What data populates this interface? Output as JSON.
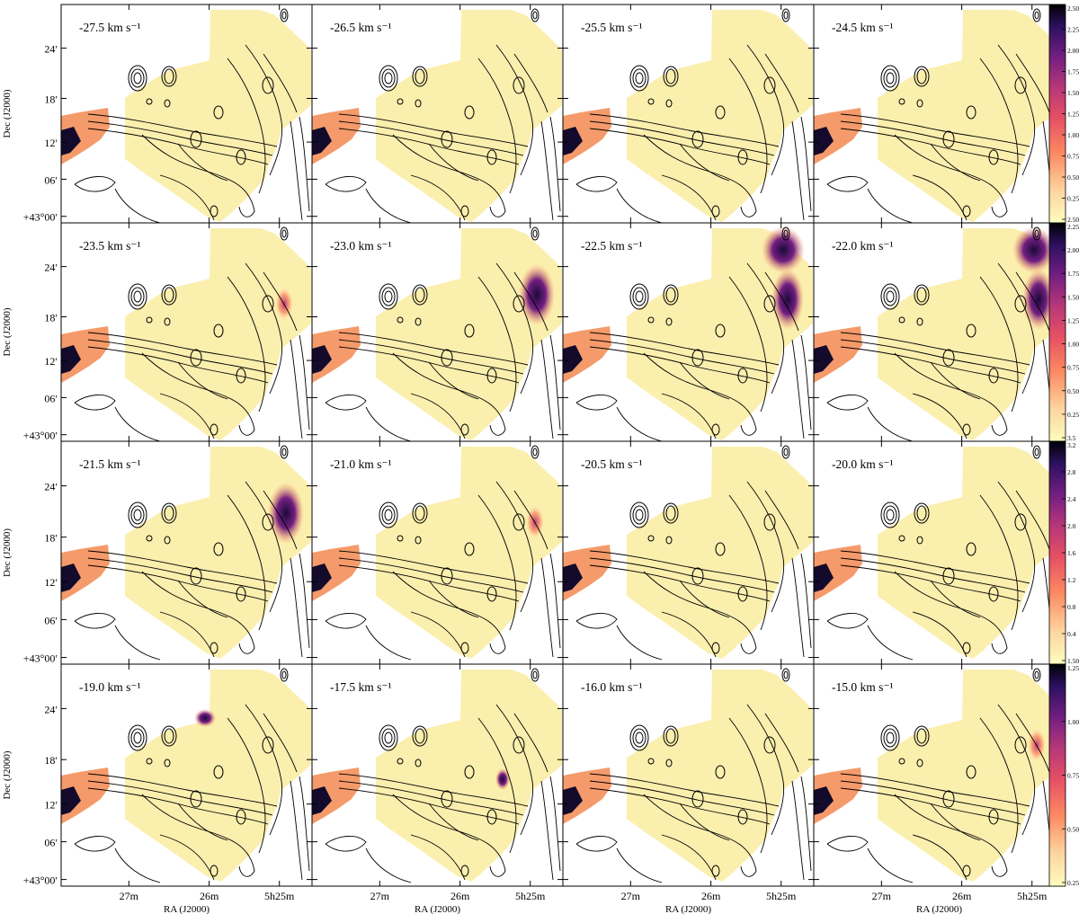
{
  "chart_data": {
    "type": "heatmap",
    "description_units": "velocity channel maps with contour overlay",
    "grid": {
      "rows": 4,
      "cols": 4
    },
    "xlabel": "RA (J2000)",
    "ylabel": "Dec (J2000)",
    "x_ticks": [
      "27m",
      "26m",
      "5h25m"
    ],
    "y_ticks": [
      "24′",
      "18′",
      "12′",
      "06′",
      "+43°00′"
    ],
    "colormap": [
      "#fcfdbf",
      "#fdd49e",
      "#fc8961",
      "#e55064",
      "#b73779",
      "#721f81",
      "#2c115f",
      "#000004"
    ],
    "panels": [
      {
        "velocity": "-27.5 km s⁻¹",
        "peak": []
      },
      {
        "velocity": "-26.5 km s⁻¹",
        "peak": []
      },
      {
        "velocity": "-25.5 km s⁻¹",
        "peak": []
      },
      {
        "velocity": "-24.5 km s⁻¹",
        "peak": []
      },
      {
        "velocity": "-23.5 km s⁻¹",
        "peak": [
          "ne_small"
        ]
      },
      {
        "velocity": "-23.0 km s⁻¹",
        "peak": [
          "ne_mid"
        ]
      },
      {
        "velocity": "-22.5 km s⁻¹",
        "peak": [
          "ne_strong"
        ]
      },
      {
        "velocity": "-22.0 km s⁻¹",
        "peak": [
          "ne_strong"
        ]
      },
      {
        "velocity": "-21.5 km s⁻¹",
        "peak": [
          "ne_mid"
        ]
      },
      {
        "velocity": "-21.0 km s⁻¹",
        "peak": [
          "ne_small"
        ]
      },
      {
        "velocity": "-20.5 km s⁻¹",
        "peak": []
      },
      {
        "velocity": "-20.0 km s⁻¹",
        "peak": []
      },
      {
        "velocity": "-19.0 km s⁻¹",
        "peak": [
          "n_blob"
        ]
      },
      {
        "velocity": "-17.5 km s⁻¹",
        "peak": [
          "center_small"
        ]
      },
      {
        "velocity": "-16.0 km s⁻¹",
        "peak": []
      },
      {
        "velocity": "-15.0 km s⁻¹",
        "peak": [
          "ne_small"
        ]
      }
    ],
    "colorbars": [
      {
        "row": 0,
        "ticks": [
          "2.50",
          "2.25",
          "2.00",
          "1.75",
          "1.50",
          "1.25",
          "1.00",
          "0.75",
          "0.50",
          "0.25",
          "2.50"
        ]
      },
      {
        "row": 1,
        "ticks": [
          "2.25",
          "2.00",
          "1.75",
          "1.50",
          "1.25",
          "1.00",
          "0.75",
          "0.50",
          "0.25",
          "3.5"
        ]
      },
      {
        "row": 2,
        "ticks": [
          "3.2",
          "2.8",
          "2.4",
          "2.0",
          "1.6",
          "1.2",
          "0.8",
          "0.4",
          "1.50"
        ]
      },
      {
        "row": 3,
        "ticks": [
          "1.25",
          "1.00",
          "0.75",
          "0.50",
          "0.25"
        ]
      }
    ]
  }
}
